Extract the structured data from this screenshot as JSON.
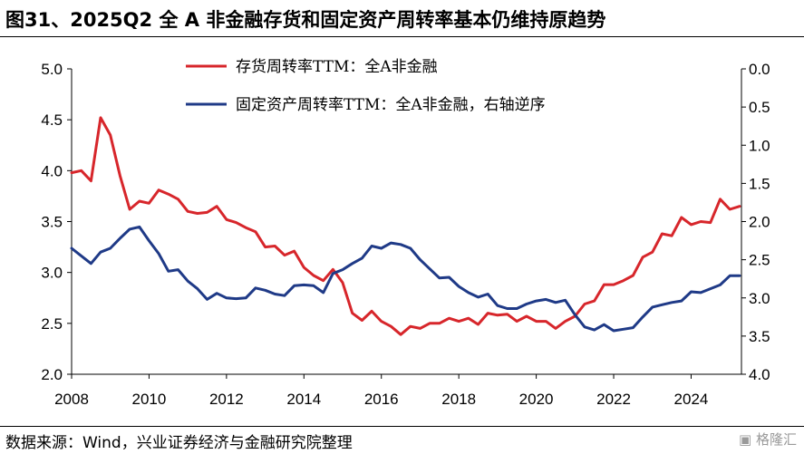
{
  "header": {
    "title": "图31、2025Q2 全 A 非金融存货和固定资产周转率基本仍维持原趋势"
  },
  "footer": {
    "source": "数据来源：Wind，兴业证券经济与金融研究院整理",
    "watermark": "格隆汇"
  },
  "colors": {
    "inventory": "#d7262b",
    "fixed_assets": "#1f3a87"
  },
  "chart_data": {
    "type": "line",
    "title": "",
    "xlabel": "",
    "ylabel": "",
    "legend_position": "top-center",
    "grid": false,
    "x_ticks": [
      "2008",
      "2010",
      "2012",
      "2014",
      "2016",
      "2018",
      "2020",
      "2022",
      "2024"
    ],
    "xlim": [
      2008,
      2025.3
    ],
    "y_left": {
      "lim": [
        2.0,
        5.0
      ],
      "ticks": [
        "5.0",
        "4.5",
        "4.0",
        "3.5",
        "3.0",
        "2.5",
        "2.0"
      ]
    },
    "y_right": {
      "lim": [
        0.0,
        4.0
      ],
      "reversed": true,
      "ticks": [
        "0.0",
        "0.5",
        "1.0",
        "1.5",
        "2.0",
        "2.5",
        "3.0",
        "3.5",
        "4.0"
      ]
    },
    "series": [
      {
        "name": "存货周转率TTM：全A非金融",
        "axis": "left",
        "color": "#d7262b",
        "x": [
          2008.0,
          2008.25,
          2008.5,
          2008.75,
          2009.0,
          2009.25,
          2009.5,
          2009.75,
          2010.0,
          2010.25,
          2010.5,
          2010.75,
          2011.0,
          2011.25,
          2011.5,
          2011.75,
          2012.0,
          2012.25,
          2012.5,
          2012.75,
          2013.0,
          2013.25,
          2013.5,
          2013.75,
          2014.0,
          2014.25,
          2014.5,
          2014.75,
          2015.0,
          2015.25,
          2015.5,
          2015.75,
          2016.0,
          2016.25,
          2016.5,
          2016.75,
          2017.0,
          2017.25,
          2017.5,
          2017.75,
          2018.0,
          2018.25,
          2018.5,
          2018.75,
          2019.0,
          2019.25,
          2019.5,
          2019.75,
          2020.0,
          2020.25,
          2020.5,
          2020.75,
          2021.0,
          2021.25,
          2021.5,
          2021.75,
          2022.0,
          2022.25,
          2022.5,
          2022.75,
          2023.0,
          2023.25,
          2023.5,
          2023.75,
          2024.0,
          2024.25,
          2024.5,
          2024.75,
          2025.0,
          2025.25
        ],
        "values": [
          3.98,
          4.0,
          3.9,
          4.52,
          4.35,
          3.95,
          3.62,
          3.7,
          3.68,
          3.81,
          3.77,
          3.72,
          3.6,
          3.58,
          3.59,
          3.65,
          3.52,
          3.49,
          3.44,
          3.4,
          3.25,
          3.26,
          3.17,
          3.21,
          3.05,
          2.97,
          2.92,
          3.03,
          2.9,
          2.6,
          2.53,
          2.62,
          2.52,
          2.47,
          2.39,
          2.47,
          2.45,
          2.5,
          2.5,
          2.55,
          2.52,
          2.55,
          2.49,
          2.6,
          2.58,
          2.59,
          2.52,
          2.57,
          2.52,
          2.52,
          2.45,
          2.52,
          2.57,
          2.69,
          2.72,
          2.88,
          2.88,
          2.92,
          2.97,
          3.15,
          3.2,
          3.38,
          3.36,
          3.54,
          3.47,
          3.5,
          3.49,
          3.72,
          3.62,
          3.65
        ]
      },
      {
        "name": "固定资产周转率TTM：全A非金融，右轴逆序",
        "axis": "right",
        "color": "#1f3a87",
        "x": [
          2008.0,
          2008.25,
          2008.5,
          2008.75,
          2009.0,
          2009.25,
          2009.5,
          2009.75,
          2010.0,
          2010.25,
          2010.5,
          2010.75,
          2011.0,
          2011.25,
          2011.5,
          2011.75,
          2012.0,
          2012.25,
          2012.5,
          2012.75,
          2013.0,
          2013.25,
          2013.5,
          2013.75,
          2014.0,
          2014.25,
          2014.5,
          2014.75,
          2015.0,
          2015.25,
          2015.5,
          2015.75,
          2016.0,
          2016.25,
          2016.5,
          2016.75,
          2017.0,
          2017.25,
          2017.5,
          2017.75,
          2018.0,
          2018.25,
          2018.5,
          2018.75,
          2019.0,
          2019.25,
          2019.5,
          2019.75,
          2020.0,
          2020.25,
          2020.5,
          2020.75,
          2021.0,
          2021.25,
          2021.5,
          2021.75,
          2022.0,
          2022.25,
          2022.5,
          2022.75,
          2023.0,
          2023.25,
          2023.5,
          2023.75,
          2024.0,
          2024.25,
          2024.5,
          2024.75,
          2025.0,
          2025.25
        ],
        "values": [
          2.35,
          2.45,
          2.55,
          2.4,
          2.35,
          2.22,
          2.1,
          2.07,
          2.25,
          2.42,
          2.65,
          2.63,
          2.78,
          2.88,
          3.02,
          2.94,
          3.0,
          3.01,
          3.0,
          2.87,
          2.9,
          2.95,
          2.97,
          2.84,
          2.83,
          2.84,
          2.93,
          2.68,
          2.63,
          2.55,
          2.48,
          2.32,
          2.35,
          2.28,
          2.3,
          2.35,
          2.5,
          2.62,
          2.74,
          2.73,
          2.85,
          2.93,
          2.99,
          2.95,
          3.1,
          3.14,
          3.14,
          3.08,
          3.04,
          3.02,
          3.06,
          3.03,
          3.22,
          3.38,
          3.42,
          3.35,
          3.43,
          3.41,
          3.39,
          3.25,
          3.12,
          3.09,
          3.06,
          3.04,
          2.92,
          2.93,
          2.88,
          2.83,
          2.71,
          2.71
        ]
      }
    ]
  }
}
